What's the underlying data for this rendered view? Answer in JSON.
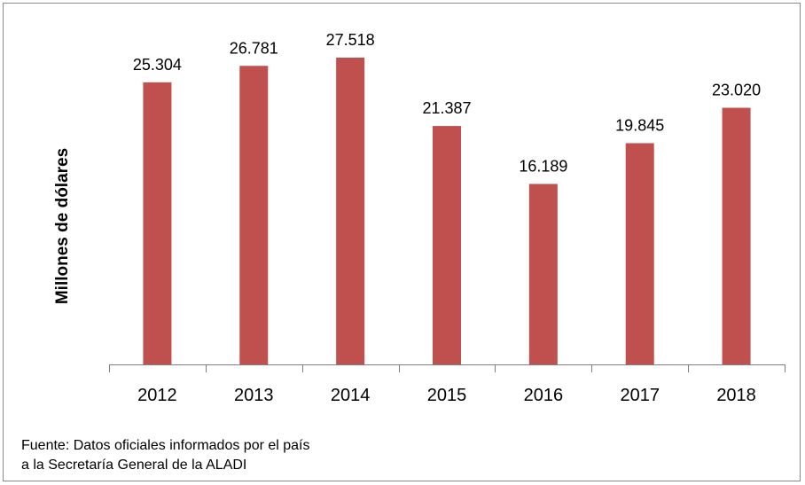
{
  "chart_data": {
    "type": "bar",
    "title": "",
    "xlabel": "",
    "ylabel": "Millones de dólares",
    "categories": [
      "2012",
      "2013",
      "2014",
      "2015",
      "2016",
      "2017",
      "2018"
    ],
    "values": [
      25304,
      26781,
      27518,
      21387,
      16189,
      19845,
      23020
    ],
    "value_labels": [
      "25.304",
      "26.781",
      "27.518",
      "21.387",
      "16.189",
      "19.845",
      "23.020"
    ],
    "ylim": [
      0,
      30000
    ],
    "grid": false,
    "legend": "none",
    "bar_color": "#C0504D"
  },
  "source": {
    "line1": "Fuente: Datos oficiales informados por el país",
    "line2": "a la Secretaría General de la ALADI"
  }
}
